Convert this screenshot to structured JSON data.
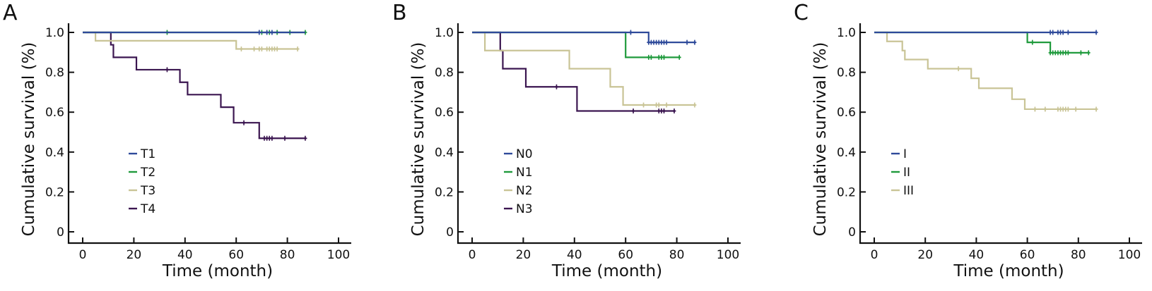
{
  "chart_data": [
    {
      "type": "line",
      "panel": "A",
      "xlabel": "Time (month)",
      "ylabel": "Cumulative survival (%)",
      "xlim": [
        0,
        100
      ],
      "ylim": [
        0,
        1.0
      ],
      "xticks": [
        "0",
        "20",
        "40",
        "60",
        "80",
        "100"
      ],
      "yticks": [
        "0",
        "0.2",
        "0.4",
        "0.6",
        "0.8",
        "1.0"
      ],
      "grid": false,
      "legend_position": "center-left",
      "series": [
        {
          "name": "T1",
          "color": "#2e4a9a",
          "steps": [
            [
              0,
              1.0
            ],
            [
              87,
              1.0
            ]
          ],
          "censored": [
            69,
            72,
            74
          ]
        },
        {
          "name": "T2",
          "color": "#1f9a3c",
          "steps": [
            [
              0,
              1.0
            ],
            [
              87,
              1.0
            ]
          ],
          "censored": [
            33,
            70,
            73,
            76,
            81,
            87
          ]
        },
        {
          "name": "T3",
          "color": "#c9c496",
          "steps": [
            [
              0,
              1.0
            ],
            [
              5,
              0.958
            ],
            [
              60,
              0.917
            ],
            [
              84,
              0.917
            ]
          ],
          "censored": [
            62,
            67,
            69,
            70,
            72,
            73,
            74,
            75,
            76,
            84
          ]
        },
        {
          "name": "T4",
          "color": "#3b1650",
          "steps": [
            [
              0,
              1.0
            ],
            [
              11,
              0.938
            ],
            [
              12,
              0.875
            ],
            [
              21,
              0.813
            ],
            [
              38,
              0.75
            ],
            [
              41,
              0.688
            ],
            [
              54,
              0.625
            ],
            [
              59,
              0.547
            ],
            [
              69,
              0.469
            ],
            [
              87,
              0.469
            ]
          ],
          "censored": [
            33,
            63,
            71,
            72,
            73,
            74,
            79,
            87
          ]
        }
      ]
    },
    {
      "type": "line",
      "panel": "B",
      "xlabel": "Time (month)",
      "ylabel": "Cumulative survival (%)",
      "xlim": [
        0,
        100
      ],
      "ylim": [
        0,
        1.0
      ],
      "xticks": [
        "0",
        "20",
        "40",
        "60",
        "80",
        "100"
      ],
      "yticks": [
        "0",
        "0.2",
        "0.4",
        "0.6",
        "0.8",
        "1.0"
      ],
      "grid": false,
      "legend_position": "center-left",
      "series": [
        {
          "name": "N0",
          "color": "#2e4a9a",
          "steps": [
            [
              0,
              1.0
            ],
            [
              69,
              0.95
            ],
            [
              87,
              0.95
            ]
          ],
          "censored": [
            62,
            69,
            70,
            71,
            72,
            73,
            74,
            75,
            76,
            84,
            87
          ]
        },
        {
          "name": "N1",
          "color": "#1f9a3c",
          "steps": [
            [
              0,
              1.0
            ],
            [
              60,
              0.875
            ],
            [
              81,
              0.875
            ]
          ],
          "censored": [
            69,
            70,
            73,
            74,
            75,
            81
          ]
        },
        {
          "name": "N2",
          "color": "#c9c496",
          "steps": [
            [
              0,
              1.0
            ],
            [
              5,
              0.909
            ],
            [
              38,
              0.818
            ],
            [
              54,
              0.727
            ],
            [
              59,
              0.636
            ],
            [
              87,
              0.636
            ]
          ],
          "censored": [
            67,
            72,
            73,
            76,
            87
          ]
        },
        {
          "name": "N3",
          "color": "#3b1650",
          "steps": [
            [
              0,
              1.0
            ],
            [
              11,
              0.909
            ],
            [
              12,
              0.818
            ],
            [
              21,
              0.727
            ],
            [
              41,
              0.606
            ],
            [
              79,
              0.606
            ]
          ],
          "censored": [
            33,
            63,
            73,
            74,
            75,
            79
          ]
        }
      ]
    },
    {
      "type": "line",
      "panel": "C",
      "xlabel": "Time (month)",
      "ylabel": "Cumulative survival (%)",
      "xlim": [
        0,
        100
      ],
      "ylim": [
        0,
        1.0
      ],
      "xticks": [
        "0",
        "20",
        "40",
        "60",
        "80",
        "100"
      ],
      "yticks": [
        "0",
        "0.2",
        "0.4",
        "0.6",
        "0.8",
        "1.0"
      ],
      "grid": false,
      "legend_position": "center-left",
      "series": [
        {
          "name": "I",
          "color": "#2e4a9a",
          "steps": [
            [
              0,
              1.0
            ],
            [
              87,
              1.0
            ]
          ],
          "censored": [
            69,
            70,
            72,
            73,
            74,
            76,
            87
          ]
        },
        {
          "name": "II",
          "color": "#1f9a3c",
          "steps": [
            [
              0,
              1.0
            ],
            [
              60,
              0.95
            ],
            [
              69,
              0.898
            ],
            [
              84,
              0.898
            ]
          ],
          "censored": [
            62,
            69,
            70,
            71,
            72,
            73,
            74,
            75,
            76,
            81,
            84
          ]
        },
        {
          "name": "III",
          "color": "#c9c496",
          "steps": [
            [
              0,
              1.0
            ],
            [
              5,
              0.955
            ],
            [
              11,
              0.909
            ],
            [
              12,
              0.864
            ],
            [
              21,
              0.818
            ],
            [
              38,
              0.77
            ],
            [
              41,
              0.72
            ],
            [
              54,
              0.665
            ],
            [
              59,
              0.615
            ],
            [
              87,
              0.615
            ]
          ],
          "censored": [
            33,
            63,
            67,
            72,
            73,
            74,
            75,
            76,
            79,
            87
          ]
        }
      ]
    }
  ]
}
